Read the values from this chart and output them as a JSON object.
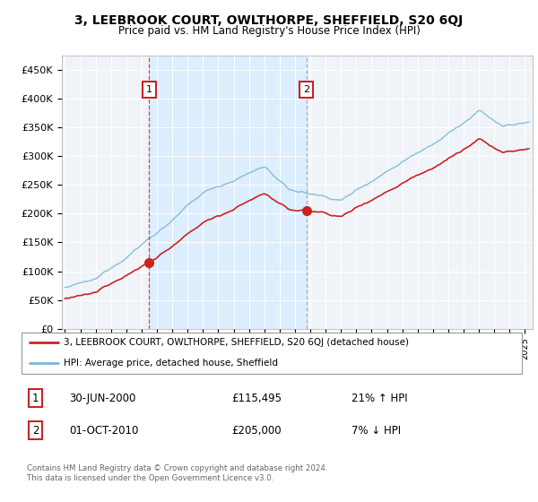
{
  "title": "3, LEEBROOK COURT, OWLTHORPE, SHEFFIELD, S20 6QJ",
  "subtitle": "Price paid vs. HM Land Registry's House Price Index (HPI)",
  "sale1_date": "30-JUN-2000",
  "sale1_price": 115495,
  "sale2_date": "01-OCT-2010",
  "sale2_price": 205000,
  "sale1_hpi_change": "21% ↑ HPI",
  "sale2_hpi_change": "7% ↓ HPI",
  "legend1": "3, LEEBROOK COURT, OWLTHORPE, SHEFFIELD, S20 6QJ (detached house)",
  "legend2": "HPI: Average price, detached house, Sheffield",
  "footer": "Contains HM Land Registry data © Crown copyright and database right 2024.\nThis data is licensed under the Open Government Licence v3.0.",
  "ylabel_ticks": [
    "£0",
    "£50K",
    "£100K",
    "£150K",
    "£200K",
    "£250K",
    "£300K",
    "£350K",
    "£400K",
    "£450K"
  ],
  "ylim": [
    0,
    475000
  ],
  "xlim_start": 1994.8,
  "xlim_end": 2025.5,
  "hpi_color": "#7ab8d9",
  "price_color": "#cc2222",
  "vline1_color": "#cc2222",
  "vline2_color": "#aaaacc",
  "shade_color": "#ddeeff",
  "bg_color_outside": "#f0f4f8",
  "grid_color": "#ffffff",
  "annotation_box_color": "#cc2222"
}
